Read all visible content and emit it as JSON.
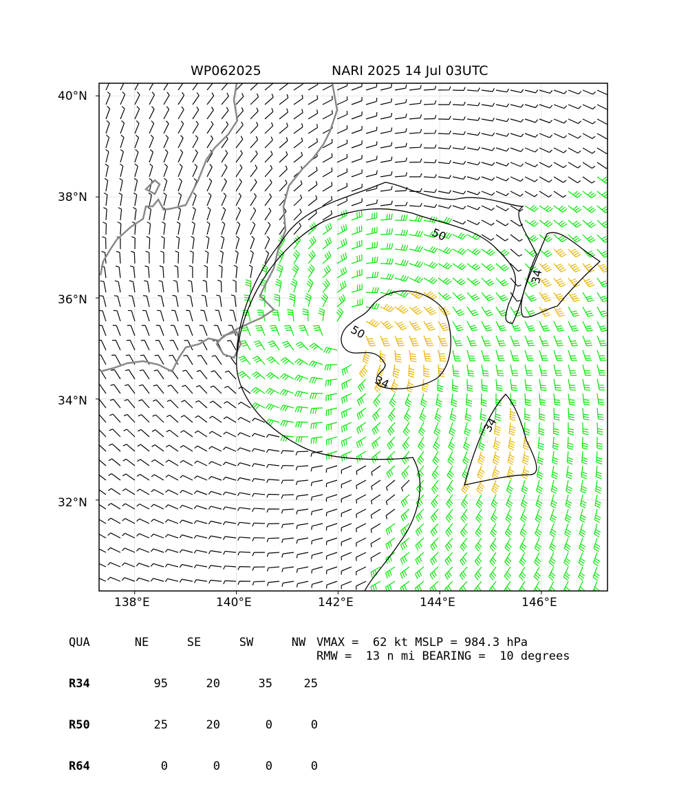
{
  "title": {
    "storm_id": "WP062025",
    "storm_info": "NARI 2025 14 Jul 03UTC"
  },
  "axes": {
    "lat_labels": [
      "40°N",
      "38°N",
      "36°N",
      "34°N",
      "32°N"
    ],
    "lon_labels": [
      "138°E",
      "140°E",
      "142°E",
      "144°E",
      "146°E"
    ],
    "extent": {
      "lon_min": 137.3,
      "lon_max": 147.3,
      "lat_min": 30.2,
      "lat_max": 40.25
    }
  },
  "contours": {
    "labels": [
      "34",
      "34",
      "34",
      "50",
      "50"
    ]
  },
  "colors": {
    "barb_low": "#000000",
    "barb_34": "#00e600",
    "barb_50": "#e6b400",
    "coast": "#888888",
    "contour": "#000000"
  },
  "wind_radii": {
    "columns": [
      "QUA",
      "NE",
      "SE",
      "SW",
      "NW"
    ],
    "rows": [
      {
        "label": "R34",
        "values": [
          "95",
          "20",
          "35",
          "25"
        ]
      },
      {
        "label": "R50",
        "values": [
          "25",
          "20",
          "0",
          "0"
        ]
      },
      {
        "label": "R64",
        "values": [
          "0",
          "0",
          "0",
          "0"
        ]
      }
    ]
  },
  "stats": {
    "line1": "VMAX =  62 kt MSLP = 984.3 hPa",
    "line2": "RMW =  13 n mi BEARING =  10 degrees"
  }
}
